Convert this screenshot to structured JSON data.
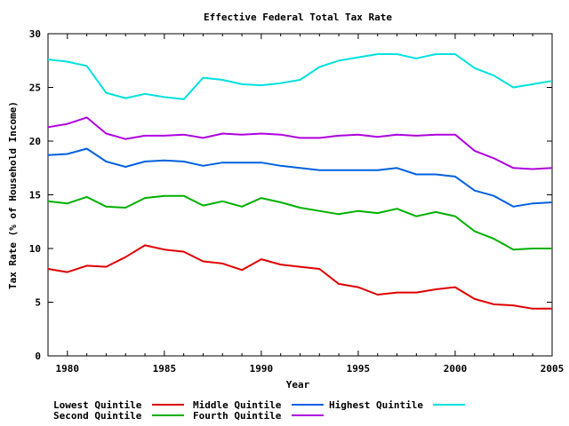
{
  "chart_data": {
    "type": "line",
    "title": "Effective Federal Total Tax Rate",
    "xlabel": "Year",
    "ylabel": "Tax Rate (% of Household Income)",
    "xlim": [
      1979,
      2005
    ],
    "ylim": [
      0,
      30
    ],
    "xticks": [
      1980,
      1985,
      1990,
      1995,
      2000,
      2005
    ],
    "yticks": [
      0,
      5,
      10,
      15,
      20,
      25,
      30
    ],
    "grid": false,
    "legend_position": "bottom",
    "x": [
      1979,
      1980,
      1981,
      1982,
      1983,
      1984,
      1985,
      1986,
      1987,
      1988,
      1989,
      1990,
      1991,
      1992,
      1993,
      1994,
      1995,
      1996,
      1997,
      1998,
      1999,
      2000,
      2001,
      2002,
      2003,
      2004,
      2005
    ],
    "series": [
      {
        "name": "Lowest Quintile",
        "color": "#e00000",
        "values": [
          8.1,
          7.8,
          8.4,
          8.3,
          9.2,
          10.3,
          9.9,
          9.7,
          8.8,
          8.6,
          8.0,
          9.0,
          8.5,
          8.3,
          8.1,
          6.7,
          6.4,
          5.7,
          5.9,
          5.9,
          6.2,
          6.4,
          5.3,
          4.8,
          4.7,
          4.4,
          4.4
        ]
      },
      {
        "name": "Second Quintile",
        "color": "#00b000",
        "values": [
          14.4,
          14.2,
          14.8,
          13.9,
          13.8,
          14.7,
          14.9,
          14.9,
          14.0,
          14.4,
          13.9,
          14.7,
          14.3,
          13.8,
          13.5,
          13.2,
          13.5,
          13.3,
          13.7,
          13.0,
          13.4,
          13.0,
          11.6,
          10.9,
          9.9,
          10.0,
          10.0
        ]
      },
      {
        "name": "Middle Quintile",
        "color": "#0060e0",
        "values": [
          18.7,
          18.8,
          19.3,
          18.1,
          17.6,
          18.1,
          18.2,
          18.1,
          17.7,
          18.0,
          18.0,
          18.0,
          17.7,
          17.5,
          17.3,
          17.3,
          17.3,
          17.3,
          17.5,
          16.9,
          16.9,
          16.7,
          15.4,
          14.9,
          13.9,
          14.2,
          14.3
        ]
      },
      {
        "name": "Fourth Quintile",
        "color": "#b000e0",
        "values": [
          21.3,
          21.6,
          22.2,
          20.7,
          20.2,
          20.5,
          20.5,
          20.6,
          20.3,
          20.7,
          20.6,
          20.7,
          20.6,
          20.3,
          20.3,
          20.5,
          20.6,
          20.4,
          20.6,
          20.5,
          20.6,
          20.6,
          19.1,
          18.4,
          17.5,
          17.4,
          17.5
        ]
      },
      {
        "name": "Highest Quintile",
        "color": "#00e0e0",
        "values": [
          27.6,
          27.4,
          27.0,
          24.5,
          24.0,
          24.4,
          24.1,
          23.9,
          25.9,
          25.7,
          25.3,
          25.2,
          25.4,
          25.7,
          26.9,
          27.5,
          27.8,
          28.1,
          28.1,
          27.7,
          28.1,
          28.1,
          26.8,
          26.1,
          25.0,
          25.3,
          25.6
        ]
      }
    ]
  }
}
